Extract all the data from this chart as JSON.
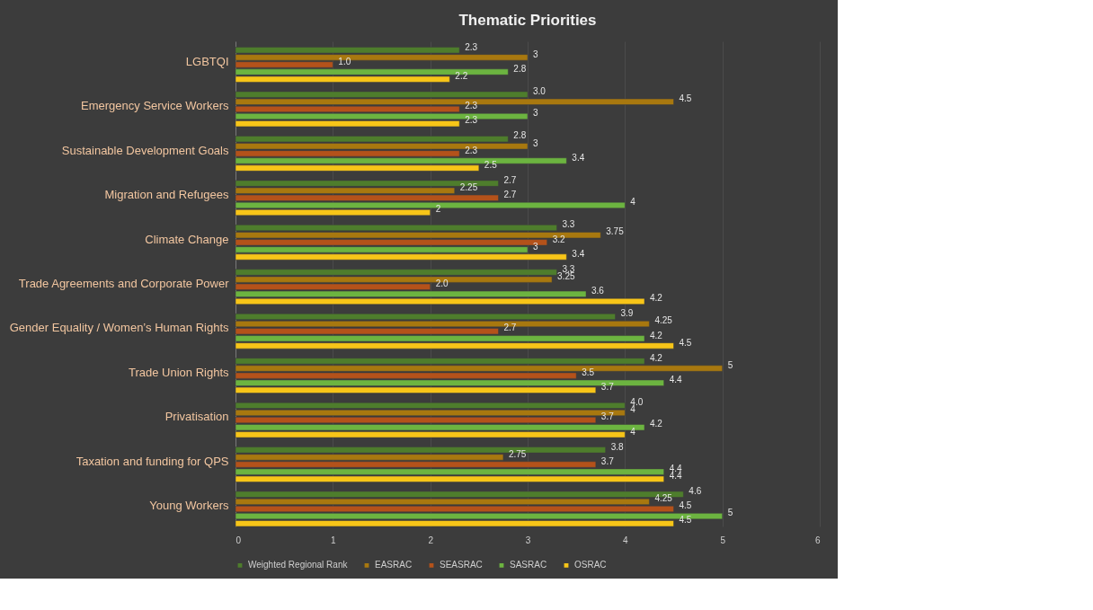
{
  "chart_data": {
    "type": "bar",
    "orientation": "horizontal",
    "title": "Thematic Priorities",
    "categories": [
      "LGBTQI",
      "Emergency Service Workers",
      "Sustainable Development Goals",
      "Migration and Refugees",
      "Climate Change",
      "Trade Agreements and Corporate Power",
      "Gender Equality / Women’s Human Rights",
      "Trade Union Rights",
      "Privatisation",
      "Taxation and funding for QPS",
      "Young Workers"
    ],
    "series": [
      {
        "name": "Weighted Regional Rank",
        "color": "#4e7d2c",
        "values": [
          2.3,
          3.0,
          2.8,
          2.7,
          3.3,
          3.3,
          3.9,
          4.2,
          4.0,
          3.8,
          4.6
        ],
        "value_labels": [
          "2.3",
          "3.0",
          "2.8",
          "2.7",
          "3.3",
          "3.3",
          "3.9",
          "4.2",
          "4.0",
          "3.8",
          "4.6"
        ]
      },
      {
        "name": "EASRAC",
        "color": "#a8780f",
        "values": [
          3,
          4.5,
          3,
          2.25,
          3.75,
          3.25,
          4.25,
          5,
          4,
          2.75,
          4.25
        ],
        "value_labels": [
          "3",
          "4.5",
          "3",
          "2.25",
          "3.75",
          "3.25",
          "4.25",
          "5",
          "4",
          "2.75",
          "4.25"
        ]
      },
      {
        "name": "SEASRAC",
        "color": "#b4521a",
        "values": [
          1.0,
          2.3,
          2.3,
          2.7,
          3.2,
          2.0,
          2.7,
          3.5,
          3.7,
          3.7,
          4.5
        ],
        "value_labels": [
          "1.0",
          "2.3",
          "2.3",
          "2.7",
          "3.2",
          "2.0",
          "2.7",
          "3.5",
          "3.7",
          "3.7",
          "4.5"
        ]
      },
      {
        "name": "SASRAC",
        "color": "#6cb440",
        "values": [
          2.8,
          3,
          3.4,
          4,
          3,
          3.6,
          4.2,
          4.4,
          4.2,
          4.4,
          5
        ],
        "value_labels": [
          "2.8",
          "3",
          "3.4",
          "4",
          "3",
          "3.6",
          "4.2",
          "4.4",
          "4.2",
          "4.4",
          "5"
        ]
      },
      {
        "name": "OSRAC",
        "color": "#f7c518",
        "values": [
          2.2,
          2.3,
          2.5,
          2,
          3.4,
          4.2,
          4.5,
          3.7,
          4,
          4.4,
          4.5
        ],
        "value_labels": [
          "2.2",
          "2.3",
          "2.5",
          "2",
          "3.4",
          "4.2",
          "4.5",
          "3.7",
          "4",
          "4.4",
          "4.5"
        ]
      }
    ],
    "xlim": [
      0,
      6
    ],
    "xticks": [
      0,
      1,
      2,
      3,
      4,
      5,
      6
    ],
    "grid": "x",
    "legend": "bottom"
  }
}
